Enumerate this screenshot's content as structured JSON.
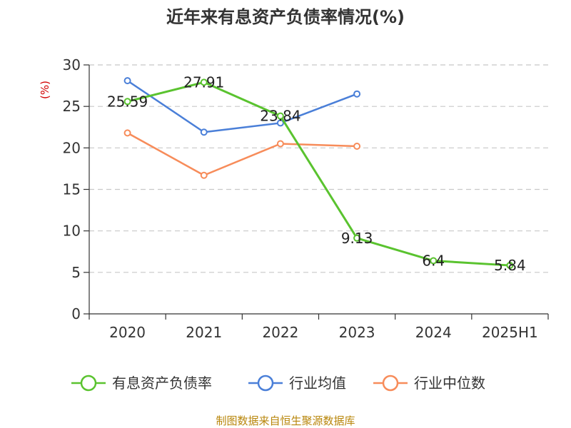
{
  "title": "近年来有息资产负债率情况(%)",
  "source": "制图数据来自恒生聚源数据库",
  "chart_data": {
    "type": "line",
    "title": "近年来有息资产负债率情况(%)",
    "ylabel": "(%)",
    "xlabel": "",
    "categories": [
      "2020",
      "2021",
      "2022",
      "2023",
      "2024",
      "2025H1"
    ],
    "ylim": [
      0,
      30
    ],
    "yticks": [
      0,
      5,
      10,
      15,
      20,
      25,
      30
    ],
    "grid": true,
    "legend_position": "bottom",
    "series": [
      {
        "name": "有息资产负债率",
        "color": "#5ac32f",
        "values": [
          25.59,
          27.91,
          23.84,
          9.13,
          6.4,
          5.84
        ],
        "labels": [
          "25.59",
          "27.91",
          "23.84",
          "9.13",
          "6.4",
          "5.84"
        ]
      },
      {
        "name": "行业均值",
        "color": "#4a7fd8",
        "values": [
          28.1,
          21.9,
          23.0,
          26.5,
          null,
          null
        ]
      },
      {
        "name": "行业中位数",
        "color": "#f78c5a",
        "values": [
          21.8,
          16.7,
          20.5,
          20.2,
          null,
          null
        ]
      }
    ]
  }
}
